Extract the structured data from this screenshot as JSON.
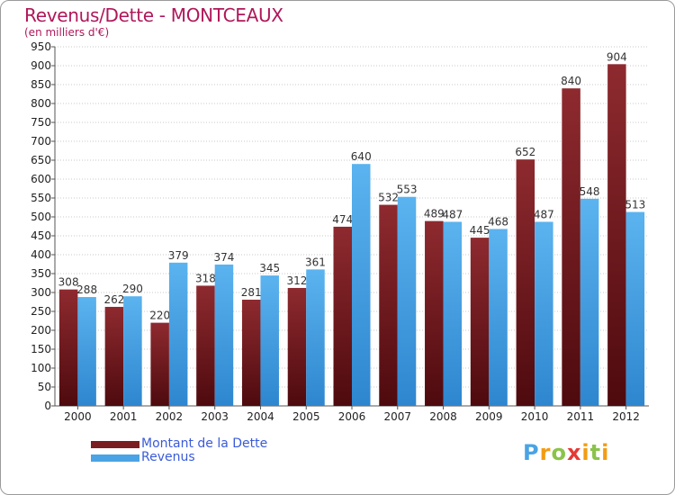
{
  "header": {
    "title": "Revenus/Dette - MONTCEAUX",
    "subtitle": "(en milliers d'€)"
  },
  "colors": {
    "dette": "#7a1e22",
    "revenus": "#4aa3e4",
    "title": "#b0175a",
    "legend_text": "#3a5bd9",
    "grid": "#c8c8c8"
  },
  "legend": {
    "items": [
      {
        "label": "Montant de la Dette",
        "color": "#7a1e22"
      },
      {
        "label": "Revenus",
        "color": "#4aa3e4"
      }
    ]
  },
  "logo": {
    "text": "Proxiti",
    "letter_colors": [
      "#4aa3e4",
      "#f39c12",
      "#8bc34a",
      "#e53935",
      "#f39c12",
      "#8bc34a",
      "#f39c12"
    ]
  },
  "chart_data": {
    "type": "bar",
    "title": "Revenus/Dette - MONTCEAUX",
    "subtitle": "(en milliers d'€)",
    "categories": [
      "2000",
      "2001",
      "2002",
      "2003",
      "2004",
      "2005",
      "2006",
      "2007",
      "2008",
      "2009",
      "2010",
      "2011",
      "2012"
    ],
    "series": [
      {
        "name": "Montant de la Dette",
        "color": "#7a1e22",
        "values": [
          308,
          262,
          220,
          318,
          281,
          312,
          474,
          532,
          489,
          445,
          652,
          840,
          904
        ]
      },
      {
        "name": "Revenus",
        "color": "#4aa3e4",
        "values": [
          288,
          290,
          379,
          374,
          345,
          361,
          640,
          553,
          487,
          468,
          487,
          548,
          513
        ]
      }
    ],
    "ylim": [
      0,
      950
    ],
    "ytick_step": 50,
    "grid": true,
    "legend_position": "bottom-left"
  }
}
